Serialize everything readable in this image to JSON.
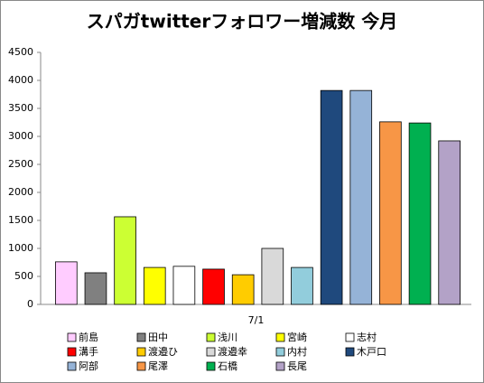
{
  "chart_data": {
    "type": "bar",
    "title": "スパガtwitterフォロワー増減数 今月",
    "categories": [
      "7/1"
    ],
    "series": [
      {
        "name": "前島",
        "color": "#ffccff",
        "values": [
          760
        ]
      },
      {
        "name": "田中",
        "color": "#808080",
        "values": [
          565
        ]
      },
      {
        "name": "浅川",
        "color": "#ccff33",
        "values": [
          1565
        ]
      },
      {
        "name": "宮崎",
        "color": "#ffff00",
        "values": [
          660
        ]
      },
      {
        "name": "志村",
        "color": "#ffffff",
        "values": [
          680
        ]
      },
      {
        "name": "溝手",
        "color": "#ff0000",
        "values": [
          630
        ]
      },
      {
        "name": "渡邉ひ",
        "color": "#ffcc00",
        "values": [
          530
        ]
      },
      {
        "name": "渡邉幸",
        "color": "#d9d9d9",
        "values": [
          1000
        ]
      },
      {
        "name": "内村",
        "color": "#92cddc",
        "values": [
          660
        ]
      },
      {
        "name": "木戸口",
        "color": "#1f497d",
        "values": [
          3820
        ]
      },
      {
        "name": "阿部",
        "color": "#95b3d7",
        "values": [
          3820
        ]
      },
      {
        "name": "尾澤",
        "color": "#f79646",
        "values": [
          3260
        ]
      },
      {
        "name": "石橋",
        "color": "#00b050",
        "values": [
          3240
        ]
      },
      {
        "name": "長尾",
        "color": "#b3a2c7",
        "values": [
          2920
        ]
      }
    ],
    "ylim": [
      0,
      4500
    ],
    "yticks": [
      0,
      500,
      1000,
      1500,
      2000,
      2500,
      3000,
      3500,
      4000,
      4500
    ],
    "grid": false,
    "legend": "bottom"
  }
}
